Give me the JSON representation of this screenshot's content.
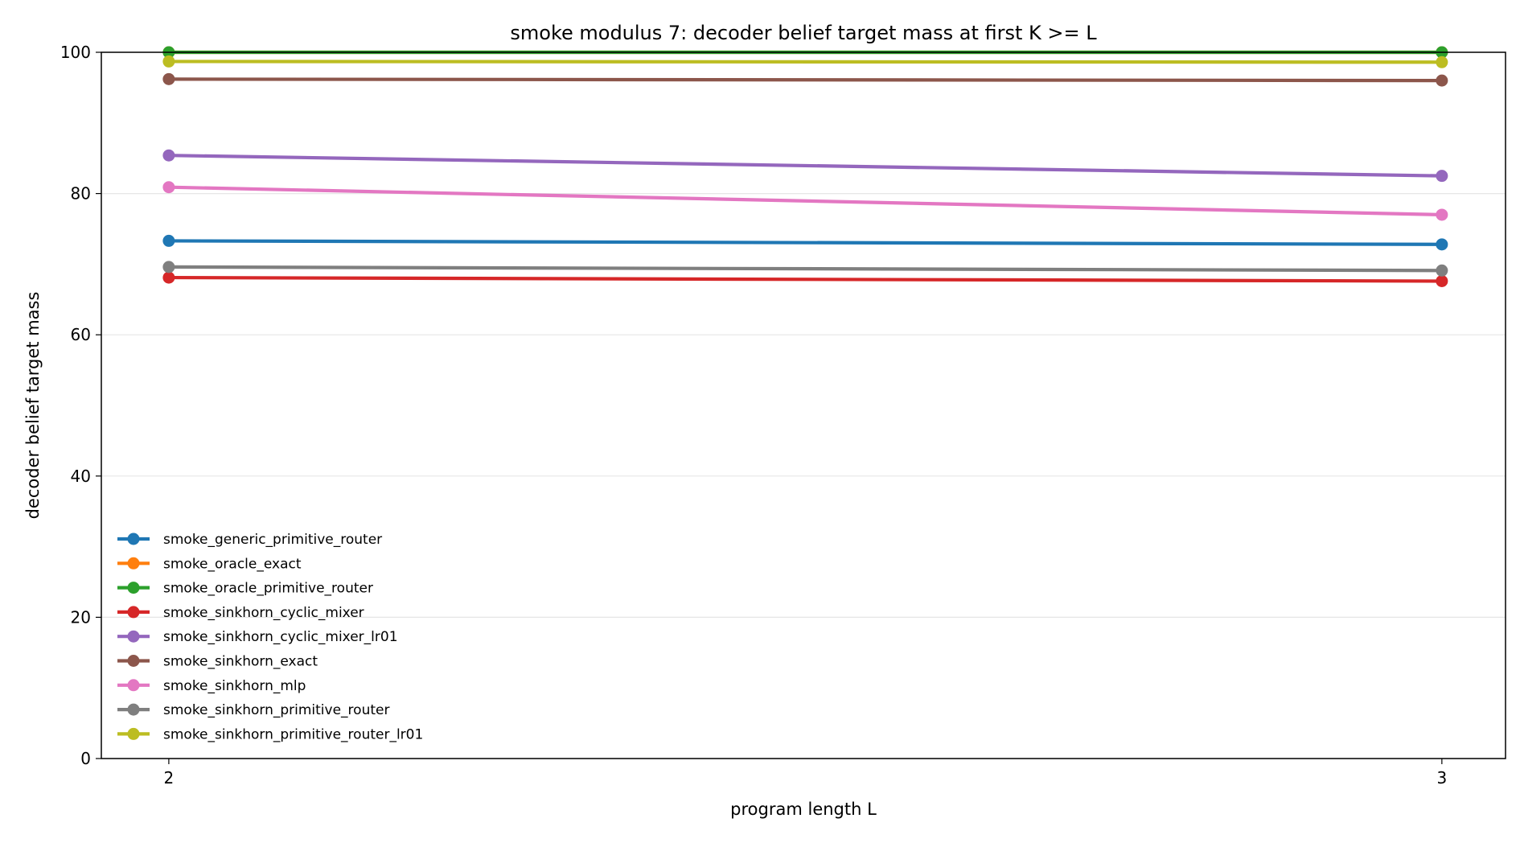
{
  "chart_data": {
    "type": "line",
    "title": "smoke modulus 7: decoder belief target mass at first K >= L",
    "xlabel": "program length L",
    "ylabel": "decoder belief target mass",
    "x": [
      2,
      3
    ],
    "x_ticks": [
      "2",
      "3"
    ],
    "xlim": [
      1.947,
      3.05
    ],
    "ylim": [
      0,
      100
    ],
    "y_ticks": [
      "0",
      "20",
      "40",
      "60",
      "80",
      "100"
    ],
    "grid": "horizontal",
    "legend_position": "lower-left",
    "series": [
      {
        "name": "smoke_generic_primitive_router",
        "color": "#1f77b4",
        "values": [
          73.3,
          72.8
        ]
      },
      {
        "name": "smoke_oracle_exact",
        "color": "#ff7f0e",
        "values": [
          100,
          100
        ]
      },
      {
        "name": "smoke_oracle_primitive_router",
        "color": "#2ca02c",
        "values": [
          100,
          100
        ]
      },
      {
        "name": "smoke_sinkhorn_cyclic_mixer",
        "color": "#d62728",
        "values": [
          68.1,
          67.6
        ]
      },
      {
        "name": "smoke_sinkhorn_cyclic_mixer_lr01",
        "color": "#9467bd",
        "values": [
          85.4,
          82.5
        ]
      },
      {
        "name": "smoke_sinkhorn_exact",
        "color": "#8c564b",
        "values": [
          96.2,
          96.0
        ]
      },
      {
        "name": "smoke_sinkhorn_mlp",
        "color": "#e377c2",
        "values": [
          80.9,
          77.0
        ]
      },
      {
        "name": "smoke_sinkhorn_primitive_router",
        "color": "#7f7f7f",
        "values": [
          69.6,
          69.1
        ]
      },
      {
        "name": "smoke_sinkhorn_primitive_router_lr01",
        "color": "#bcbd22",
        "values": [
          98.7,
          98.6
        ]
      }
    ]
  }
}
